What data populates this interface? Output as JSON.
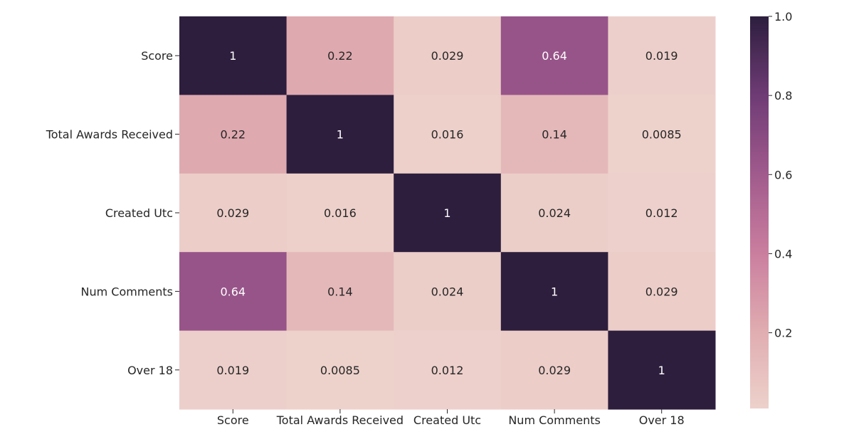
{
  "chart_data": {
    "type": "heatmap",
    "title": "",
    "xlabel": "",
    "ylabel": "",
    "row_labels": [
      "Score",
      "Total Awards Received",
      "Created Utc",
      "Num Comments",
      "Over 18"
    ],
    "col_labels": [
      "Score",
      "Total Awards Received",
      "Created Utc",
      "Num Comments",
      "Over 18"
    ],
    "values": [
      [
        1,
        0.22,
        0.029,
        0.64,
        0.019
      ],
      [
        0.22,
        1,
        0.016,
        0.14,
        0.0085
      ],
      [
        0.029,
        0.016,
        1,
        0.024,
        0.012
      ],
      [
        0.64,
        0.14,
        0.024,
        1,
        0.029
      ],
      [
        0.019,
        0.0085,
        0.012,
        0.029,
        1
      ]
    ],
    "annotations": [
      [
        "1",
        "0.22",
        "0.029",
        "0.64",
        "0.019"
      ],
      [
        "0.22",
        "1",
        "0.016",
        "0.14",
        "0.0085"
      ],
      [
        "0.029",
        "0.016",
        "1",
        "0.024",
        "0.012"
      ],
      [
        "0.64",
        "0.14",
        "0.024",
        "1",
        "0.029"
      ],
      [
        "0.019",
        "0.0085",
        "0.012",
        "0.029",
        "1"
      ]
    ],
    "colorbar": {
      "range": [
        0.0085,
        1.0
      ],
      "ticks": [
        1.0,
        0.8,
        0.6,
        0.4,
        0.2
      ],
      "tick_labels": [
        "1.0",
        "0.8",
        "0.6",
        "0.4",
        "0.2"
      ]
    },
    "colormap": [
      "#edd1cb",
      "#e0acb0",
      "#c97d9e",
      "#a05a8c",
      "#6e3b75",
      "#2d1e3e"
    ]
  }
}
